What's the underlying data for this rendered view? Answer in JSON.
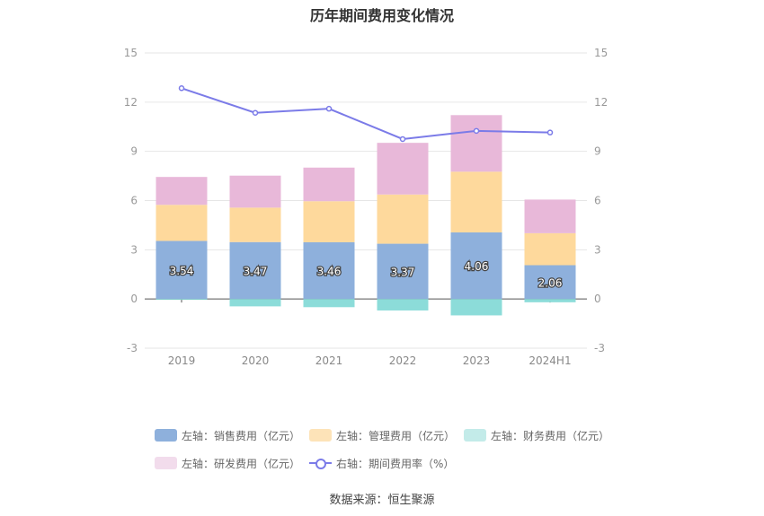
{
  "title": "历年期间费用变化情况",
  "source": "数据来源：恒生聚源",
  "chart_data": {
    "type": "bar",
    "stacked": true,
    "categories": [
      "2019",
      "2020",
      "2021",
      "2022",
      "2023",
      "2024H1"
    ],
    "y_left": {
      "ticks": [
        "15",
        "12",
        "9",
        "6",
        "3",
        "0",
        "-3"
      ],
      "range": [
        -3,
        15
      ]
    },
    "y_right": {
      "ticks": [
        "15",
        "12",
        "9",
        "6",
        "3",
        "0",
        "-3"
      ],
      "range": [
        -3,
        15
      ]
    },
    "grid": true,
    "legend_position": "bottom",
    "series": [
      {
        "name": "左轴：销售费用（亿元）",
        "color": "#8eb0dc",
        "axis": "left",
        "kind": "bar",
        "values": [
          3.54,
          3.47,
          3.46,
          3.37,
          4.06,
          2.06
        ],
        "labels": [
          "3.54",
          "3.47",
          "3.46",
          "3.37",
          "4.06",
          "2.06"
        ]
      },
      {
        "name": "左轴：管理费用（亿元）",
        "color": "#fed99c",
        "axis": "left",
        "kind": "bar",
        "values": [
          2.2,
          2.1,
          2.5,
          3.0,
          3.7,
          1.95
        ]
      },
      {
        "name": "左轴：财务费用（亿元）",
        "color": "#8cdcd9",
        "axis": "left",
        "kind": "bar",
        "values": [
          -0.05,
          -0.45,
          -0.5,
          -0.7,
          -1.0,
          -0.2
        ]
      },
      {
        "name": "左轴：研发费用（亿元）",
        "color": "#e8b8d9",
        "axis": "left",
        "kind": "bar",
        "values": [
          1.7,
          1.95,
          2.05,
          3.15,
          3.45,
          2.05
        ]
      },
      {
        "name": "右轴：期间费用率（%）",
        "color": "#7b7be8",
        "axis": "right",
        "kind": "line",
        "values": [
          12.85,
          11.35,
          11.6,
          9.75,
          10.25,
          10.15
        ]
      }
    ]
  },
  "legend": {
    "row1": [
      {
        "label": "左轴：销售费用（亿元）",
        "color": "#8eb0dc"
      },
      {
        "label": "左轴：管理费用（亿元）",
        "color": "#fde3b8"
      },
      {
        "label": "左轴：财务费用（亿元）",
        "color": "#c3ebe9"
      }
    ],
    "row2": [
      {
        "label": "左轴：研发费用（亿元）",
        "color": "#f2dcec"
      },
      {
        "label": "右轴：期间费用率（%）",
        "color": "#7b7be8"
      }
    ]
  }
}
